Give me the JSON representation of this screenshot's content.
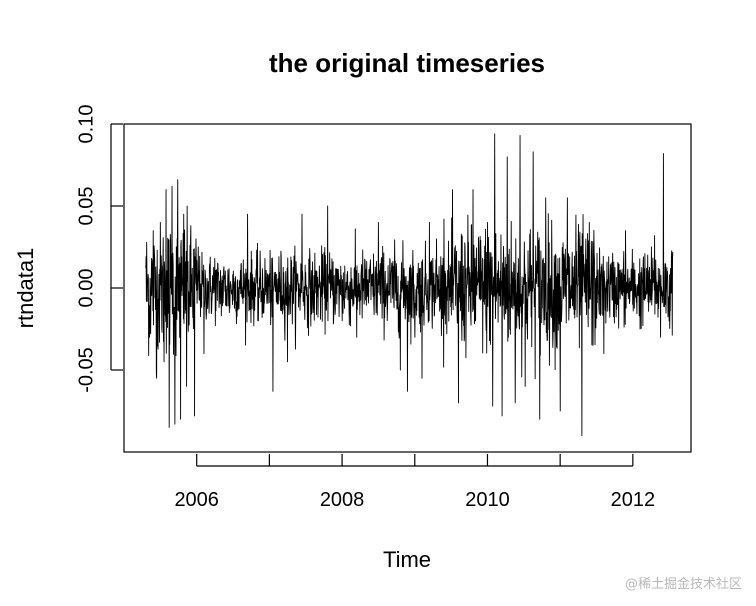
{
  "chart_data": {
    "type": "line",
    "title": "the original timeseries",
    "xlabel": "Time",
    "ylabel": "rtndata1",
    "xlim": [
      2005.0,
      2012.8
    ],
    "ylim": [
      -0.1,
      0.1
    ],
    "x_ticks": [
      2006,
      2007,
      2008,
      2009,
      2010,
      2011,
      2012
    ],
    "x_tick_labels": [
      "2006",
      "",
      "2008",
      "",
      "2010",
      "",
      "2012"
    ],
    "y_ticks": [
      -0.05,
      0.0,
      0.05,
      0.1
    ],
    "y_tick_labels": [
      "-0.05",
      "0.00",
      "0.05",
      "0.10"
    ],
    "series": [
      {
        "color": "#000000",
        "points": [
          [
            2005.3,
            0.012
          ],
          [
            2005.35,
            -0.03
          ],
          [
            2005.4,
            0.035
          ],
          [
            2005.45,
            -0.055
          ],
          [
            2005.5,
            0.04
          ],
          [
            2005.55,
            -0.045
          ],
          [
            2005.58,
            0.06
          ],
          [
            2005.62,
            -0.085
          ],
          [
            2005.66,
            0.062
          ],
          [
            2005.7,
            -0.083
          ],
          [
            2005.74,
            0.066
          ],
          [
            2005.78,
            -0.08
          ],
          [
            2005.82,
            0.045
          ],
          [
            2005.86,
            -0.06
          ],
          [
            2005.92,
            0.038
          ],
          [
            2005.97,
            -0.078
          ],
          [
            2006.02,
            0.025
          ],
          [
            2006.1,
            -0.04
          ],
          [
            2006.25,
            0.018
          ],
          [
            2006.45,
            -0.015
          ],
          [
            2006.7,
            0.045
          ],
          [
            2006.85,
            -0.02
          ],
          [
            2007.05,
            -0.063
          ],
          [
            2007.25,
            -0.045
          ],
          [
            2007.45,
            0.045
          ],
          [
            2007.6,
            -0.015
          ],
          [
            2007.8,
            0.05
          ],
          [
            2008.0,
            -0.02
          ],
          [
            2008.2,
            -0.03
          ],
          [
            2008.5,
            0.04
          ],
          [
            2008.8,
            -0.05
          ],
          [
            2008.9,
            -0.063
          ],
          [
            2009.0,
            -0.03
          ],
          [
            2009.1,
            -0.055
          ],
          [
            2009.2,
            0.04
          ],
          [
            2009.3,
            0.03
          ],
          [
            2009.4,
            0.042
          ],
          [
            2009.6,
            -0.07
          ],
          [
            2009.8,
            0.06
          ],
          [
            2010.0,
            0.04
          ],
          [
            2010.07,
            -0.072
          ],
          [
            2010.1,
            0.094
          ],
          [
            2010.2,
            -0.078
          ],
          [
            2010.27,
            0.08
          ],
          [
            2010.38,
            -0.07
          ],
          [
            2010.45,
            0.093
          ],
          [
            2010.52,
            -0.06
          ],
          [
            2010.63,
            0.083
          ],
          [
            2010.72,
            -0.08
          ],
          [
            2010.8,
            0.055
          ],
          [
            2011.0,
            -0.075
          ],
          [
            2011.1,
            0.055
          ],
          [
            2011.3,
            -0.09
          ],
          [
            2011.4,
            0.04
          ],
          [
            2011.6,
            -0.04
          ],
          [
            2011.9,
            0.035
          ],
          [
            2012.1,
            -0.025
          ],
          [
            2012.3,
            0.032
          ],
          [
            2012.38,
            -0.03
          ],
          [
            2012.42,
            0.082
          ],
          [
            2012.5,
            -0.02
          ],
          [
            2012.55,
            0.022
          ]
        ]
      }
    ]
  },
  "watermark": "@稀土掘金技术社区"
}
